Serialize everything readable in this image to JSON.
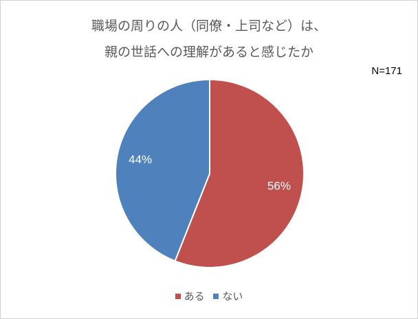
{
  "chart_data": {
    "type": "pie",
    "title_lines": [
      "職場の周りの人（同僚・上司など）は、",
      "親の世話への理解があると感じたか"
    ],
    "annotation": "N=171",
    "categories": [
      "ある",
      "ない"
    ],
    "values": [
      56,
      44
    ],
    "labels": [
      "56%",
      "44%"
    ],
    "colors": [
      "#C0504D",
      "#4F81BD"
    ],
    "legend_position": "bottom",
    "start_angle_deg": 0,
    "direction": "clockwise"
  }
}
